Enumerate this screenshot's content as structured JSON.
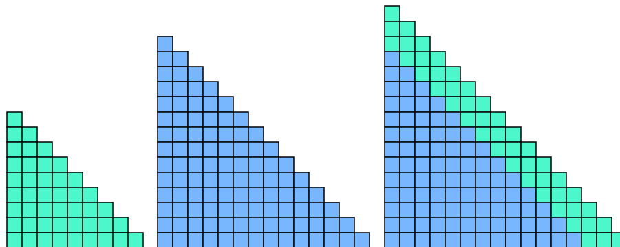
{
  "figures": [
    {
      "size": 9,
      "color": "#4cf7cb"
    },
    {
      "size": 14,
      "color": "#78b7fd"
    },
    {
      "size": 16,
      "color": "#78b7fd",
      "band": 3,
      "band_color": "#4cf7cb"
    }
  ]
}
